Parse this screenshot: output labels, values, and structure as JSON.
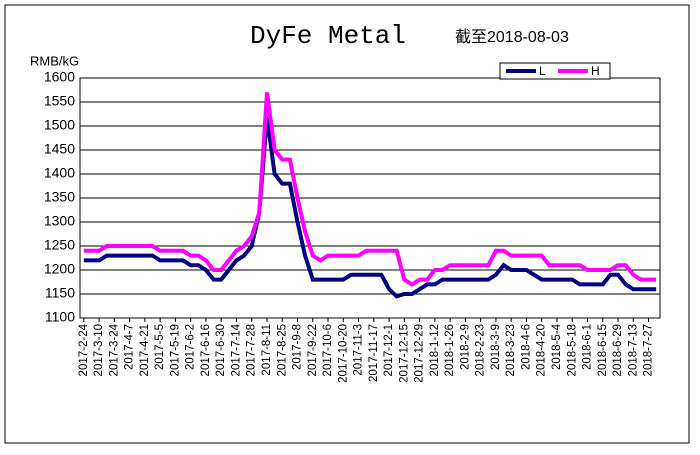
{
  "chart_data": {
    "type": "line",
    "title": "DyFe Metal",
    "subtitle": "截至2018-08-03",
    "y_label": "RMB/kG",
    "categories": [
      "2017-2-24",
      null,
      "2017-3-10",
      null,
      "2017-3-24",
      null,
      "2017-4-7",
      null,
      "2017-4-21",
      null,
      "2017-5-5",
      null,
      "2017-5-19",
      null,
      "2017-6-2",
      null,
      "2017-6-16",
      null,
      "2017-6-30",
      null,
      "2017-7-14",
      null,
      "2017-7-28",
      null,
      "2017-8-11",
      null,
      "2017-8-25",
      null,
      "2017-9-8",
      null,
      "2017-9-22",
      null,
      "2017-10-6",
      null,
      "2017-10-20",
      null,
      "2017-11-3",
      null,
      "2017-11-17",
      null,
      "2017-12-1",
      null,
      "2017-12-15",
      null,
      "2017-12-29",
      null,
      "2018-1-12",
      null,
      "2018-1-26",
      null,
      "2018-2-9",
      null,
      "2018-2-23",
      null,
      "2018-3-9",
      null,
      "2018-3-23",
      null,
      "2018-4-6",
      null,
      "2018-4-20",
      null,
      "2018-5-4",
      null,
      "2018-5-18",
      null,
      "2018-6-1",
      null,
      "2018-6-15",
      null,
      "2018-6-29",
      null,
      "2018-7-13",
      null,
      "2018-7-27",
      null
    ],
    "series": [
      {
        "name": "L",
        "color": "#000080",
        "values": [
          1220,
          1220,
          1220,
          1230,
          1230,
          1230,
          1230,
          1230,
          1230,
          1230,
          1220,
          1220,
          1220,
          1220,
          1210,
          1210,
          1200,
          1180,
          1180,
          1200,
          1220,
          1230,
          1250,
          1320,
          1520,
          1400,
          1380,
          1380,
          1300,
          1230,
          1180,
          1180,
          1180,
          1180,
          1180,
          1190,
          1190,
          1190,
          1190,
          1190,
          1160,
          1145,
          1150,
          1150,
          1160,
          1170,
          1170,
          1180,
          1180,
          1180,
          1180,
          1180,
          1180,
          1180,
          1190,
          1210,
          1200,
          1200,
          1200,
          1190,
          1180,
          1180,
          1180,
          1180,
          1180,
          1170,
          1170,
          1170,
          1170,
          1190,
          1190,
          1170,
          1160,
          1160,
          1160,
          1160
        ]
      },
      {
        "name": "H",
        "color": "#ff00ff",
        "values": [
          1240,
          1240,
          1240,
          1250,
          1250,
          1250,
          1250,
          1250,
          1250,
          1250,
          1240,
          1240,
          1240,
          1240,
          1230,
          1230,
          1220,
          1200,
          1200,
          1220,
          1240,
          1250,
          1270,
          1320,
          1570,
          1450,
          1430,
          1430,
          1350,
          1280,
          1230,
          1220,
          1230,
          1230,
          1230,
          1230,
          1230,
          1240,
          1240,
          1240,
          1240,
          1240,
          1180,
          1170,
          1180,
          1180,
          1200,
          1200,
          1210,
          1210,
          1210,
          1210,
          1210,
          1210,
          1240,
          1240,
          1230,
          1230,
          1230,
          1230,
          1230,
          1210,
          1210,
          1210,
          1210,
          1210,
          1200,
          1200,
          1200,
          1200,
          1210,
          1210,
          1190,
          1180,
          1180,
          1180
        ]
      }
    ],
    "ylim": [
      1100,
      1600
    ],
    "yticks": [
      1100,
      1150,
      1200,
      1250,
      1300,
      1350,
      1400,
      1450,
      1500,
      1550,
      1600
    ],
    "grid": true,
    "legend": "top-right"
  }
}
